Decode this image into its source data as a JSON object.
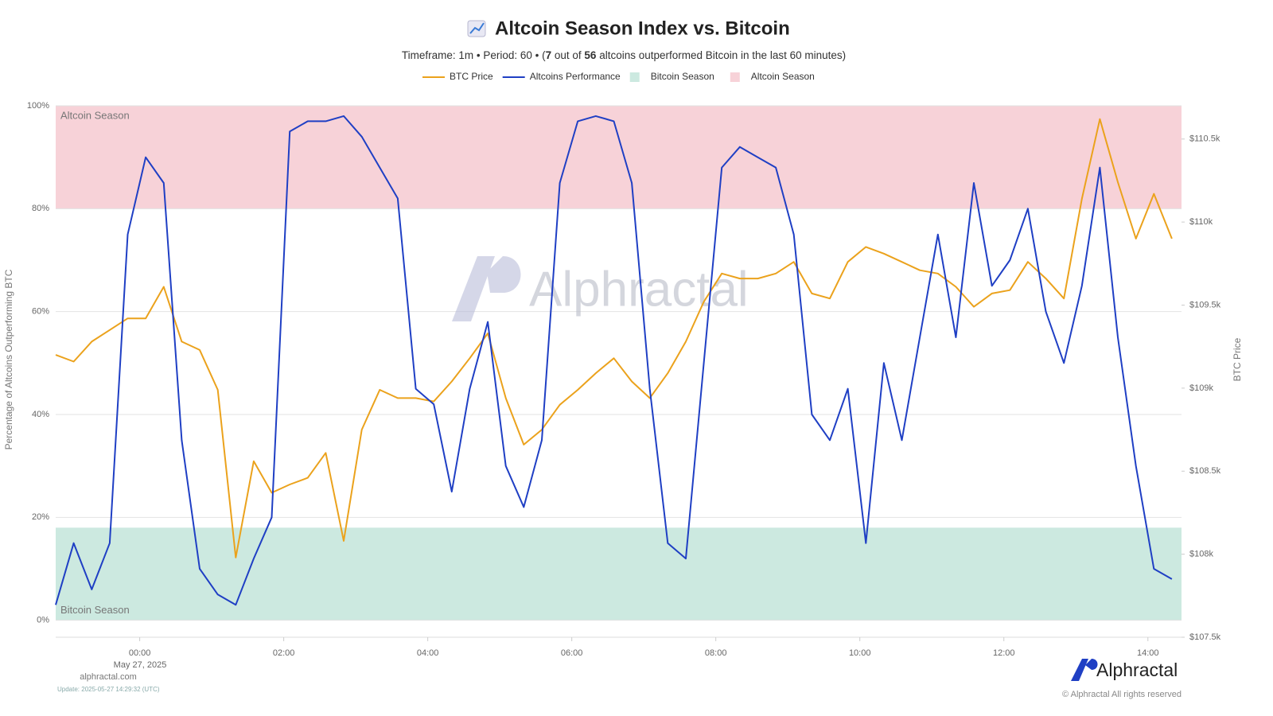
{
  "chart_data": {
    "type": "line",
    "title": "Altcoin Season Index vs. Bitcoin",
    "subtitle_parts": [
      "Timeframe: 1m  •  Period: 60  •  (",
      "7",
      " out of ",
      "56",
      " altcoins outperformed Bitcoin in the last 60 minutes)"
    ],
    "y_label": "Percentage of Altcoins Outperforming BTC",
    "y2_label": "BTC Price",
    "x_date_label": "May 27, 2025",
    "watermark": "Alphractal",
    "logo": "Alphractal",
    "site": "alphractal.com",
    "update": "Update: 2025-05-27 14:29:32 (UTC)",
    "copyright": "© Alphractal All rights reserved",
    "bands": [
      {
        "name": "Bitcoin Season",
        "color": "#cce9e0",
        "range": [
          0,
          18
        ]
      },
      {
        "name": "Altcoin Season",
        "color": "#f7d2d8",
        "range": [
          80,
          100
        ]
      }
    ],
    "xlim": [
      "2025-05-26 22:50",
      "2025-05-27 14:28"
    ],
    "xticks": [
      {
        "value": "2025-05-27 00:00",
        "label": "00:00"
      },
      {
        "value": "2025-05-27 02:00",
        "label": "02:00"
      },
      {
        "value": "2025-05-27 04:00",
        "label": "04:00"
      },
      {
        "value": "2025-05-27 06:00",
        "label": "06:00"
      },
      {
        "value": "2025-05-27 08:00",
        "label": "08:00"
      },
      {
        "value": "2025-05-27 10:00",
        "label": "10:00"
      },
      {
        "value": "2025-05-27 12:00",
        "label": "12:00"
      },
      {
        "value": "2025-05-27 14:00",
        "label": "14:00"
      }
    ],
    "ylim": [
      -3.3,
      100
    ],
    "yticks": [
      {
        "value": 0,
        "label": "0%"
      },
      {
        "value": 20,
        "label": "20%"
      },
      {
        "value": 40,
        "label": "40%"
      },
      {
        "value": 60,
        "label": "60%"
      },
      {
        "value": 80,
        "label": "80%"
      },
      {
        "value": 100,
        "label": "100%"
      }
    ],
    "y2lim": [
      107500,
      110700
    ],
    "y2ticks": [
      {
        "value": 107500,
        "label": "$107.5k"
      },
      {
        "value": 108000,
        "label": "$108k"
      },
      {
        "value": 108500,
        "label": "$108.5k"
      },
      {
        "value": 109000,
        "label": "$109k"
      },
      {
        "value": 109500,
        "label": "$109.5k"
      },
      {
        "value": 110000,
        "label": "$110k"
      },
      {
        "value": 110500,
        "label": "$110.5k"
      }
    ],
    "grid": true,
    "x": [
      "2025-05-26 22:50",
      "2025-05-26 23:05",
      "2025-05-26 23:20",
      "2025-05-26 23:35",
      "2025-05-26 23:50",
      "2025-05-27 00:05",
      "2025-05-27 00:20",
      "2025-05-27 00:35",
      "2025-05-27 00:50",
      "2025-05-27 01:05",
      "2025-05-27 01:20",
      "2025-05-27 01:35",
      "2025-05-27 01:50",
      "2025-05-27 02:05",
      "2025-05-27 02:20",
      "2025-05-27 02:35",
      "2025-05-27 02:50",
      "2025-05-27 03:05",
      "2025-05-27 03:20",
      "2025-05-27 03:35",
      "2025-05-27 03:50",
      "2025-05-27 04:05",
      "2025-05-27 04:20",
      "2025-05-27 04:35",
      "2025-05-27 04:50",
      "2025-05-27 05:05",
      "2025-05-27 05:20",
      "2025-05-27 05:35",
      "2025-05-27 05:50",
      "2025-05-27 06:05",
      "2025-05-27 06:20",
      "2025-05-27 06:35",
      "2025-05-27 06:50",
      "2025-05-27 07:05",
      "2025-05-27 07:20",
      "2025-05-27 07:35",
      "2025-05-27 07:50",
      "2025-05-27 08:05",
      "2025-05-27 08:20",
      "2025-05-27 08:35",
      "2025-05-27 08:50",
      "2025-05-27 09:05",
      "2025-05-27 09:20",
      "2025-05-27 09:35",
      "2025-05-27 09:50",
      "2025-05-27 10:05",
      "2025-05-27 10:20",
      "2025-05-27 10:35",
      "2025-05-27 10:50",
      "2025-05-27 11:05",
      "2025-05-27 11:20",
      "2025-05-27 11:35",
      "2025-05-27 11:50",
      "2025-05-27 12:05",
      "2025-05-27 12:20",
      "2025-05-27 12:35",
      "2025-05-27 12:50",
      "2025-05-27 13:05",
      "2025-05-27 13:20",
      "2025-05-27 13:35",
      "2025-05-27 13:50",
      "2025-05-27 14:05",
      "2025-05-27 14:20"
    ],
    "series": [
      {
        "name": "BTC Price",
        "color": "#eba21c",
        "axis": "y2",
        "values": [
          109200,
          109160,
          109280,
          109350,
          109420,
          109420,
          109610,
          109280,
          109230,
          108990,
          107980,
          108560,
          108370,
          108420,
          108460,
          108610,
          108080,
          108750,
          108990,
          108940,
          108940,
          108920,
          109040,
          109180,
          109330,
          108940,
          108660,
          108750,
          108900,
          108990,
          109090,
          109180,
          109040,
          108940,
          109090,
          109280,
          109520,
          109690,
          109660,
          109660,
          109690,
          109760,
          109570,
          109540,
          109760,
          109850,
          109810,
          109760,
          109710,
          109690,
          109610,
          109490,
          109570,
          109590,
          109760,
          109660,
          109540,
          110140,
          110620,
          110240,
          109900,
          110170,
          109900
        ]
      },
      {
        "name": "Altcoins Performance",
        "color": "#1f3fc4",
        "values": [
          3,
          15,
          6,
          15,
          75,
          90,
          85,
          35,
          10,
          5,
          3,
          12,
          20,
          95,
          97,
          97,
          98,
          94,
          88,
          82,
          45,
          42,
          25,
          45,
          58,
          30,
          22,
          35,
          85,
          97,
          98,
          97,
          85,
          45,
          15,
          12,
          50,
          88,
          92,
          90,
          88,
          75,
          40,
          35,
          45,
          15,
          50,
          35,
          55,
          75,
          55,
          85,
          65,
          70,
          80,
          60,
          50,
          65,
          88,
          55,
          30,
          10,
          8
        ]
      }
    ]
  }
}
